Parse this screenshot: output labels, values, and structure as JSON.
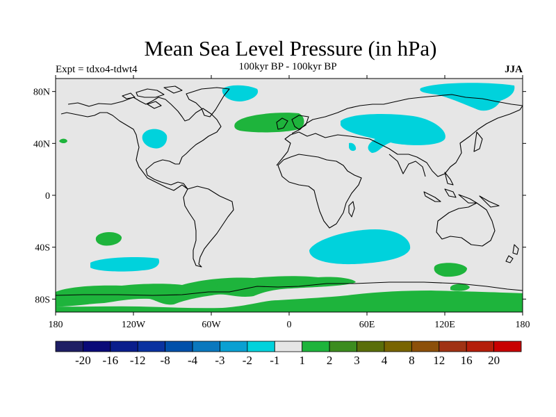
{
  "title": "Mean Sea Level Pressure (in hPa)",
  "expt_label": "Expt = tdxo4-tdwt4",
  "subtitle": "100kyr BP - 100kyr BP",
  "season": "JJA",
  "map": {
    "projection": "cylindrical-equidistant",
    "lon_range": [
      -180,
      180
    ],
    "lat_range": [
      -90,
      90
    ],
    "background_color": "#e6e6e6",
    "coastline_color": "#000000",
    "lat_ticks": [
      {
        "value": 80,
        "label": "80N"
      },
      {
        "value": 40,
        "label": "40N"
      },
      {
        "value": 0,
        "label": "0"
      },
      {
        "value": -40,
        "label": "40S"
      },
      {
        "value": -80,
        "label": "80S"
      }
    ],
    "lon_ticks": [
      {
        "value": -180,
        "label": "180"
      },
      {
        "value": -120,
        "label": "120W"
      },
      {
        "value": -60,
        "label": "60W"
      },
      {
        "value": 0,
        "label": "0"
      },
      {
        "value": 60,
        "label": "60E"
      },
      {
        "value": 120,
        "label": "120E"
      },
      {
        "value": 180,
        "label": "180"
      }
    ]
  },
  "colorbar": {
    "colors": [
      "#1e1e64",
      "#0a0a78",
      "#0a1e8c",
      "#0a32a0",
      "#0050aa",
      "#0a78be",
      "#0aa0d2",
      "#00d2dc",
      "#e6e6e6",
      "#1eb43c",
      "#3c8c1e",
      "#5a6e0a",
      "#786400",
      "#8c500a",
      "#a03214",
      "#b41e0a",
      "#c80000"
    ],
    "labels": [
      "-20",
      "-16",
      "-12",
      "-8",
      "-4",
      "-3",
      "-2",
      "-1",
      "1",
      "2",
      "3",
      "4",
      "8",
      "12",
      "16",
      "20"
    ]
  },
  "anomaly_colors": {
    "negative_1_2": "#00d2dc",
    "positive_1_2": "#1eb43c"
  }
}
